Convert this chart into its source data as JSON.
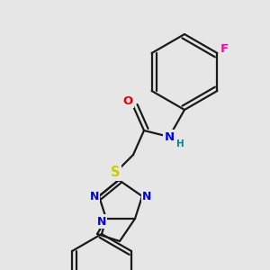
{
  "bg_color": "#e6e6e6",
  "bond_color": "#1a1a1a",
  "bond_width": 1.6,
  "atom_colors": {
    "N": "#0000ee",
    "O": "#ee0000",
    "S": "#cccc00",
    "F": "#ff00aa",
    "H": "#008888",
    "C": "#1a1a1a"
  },
  "font_size": 8.5
}
